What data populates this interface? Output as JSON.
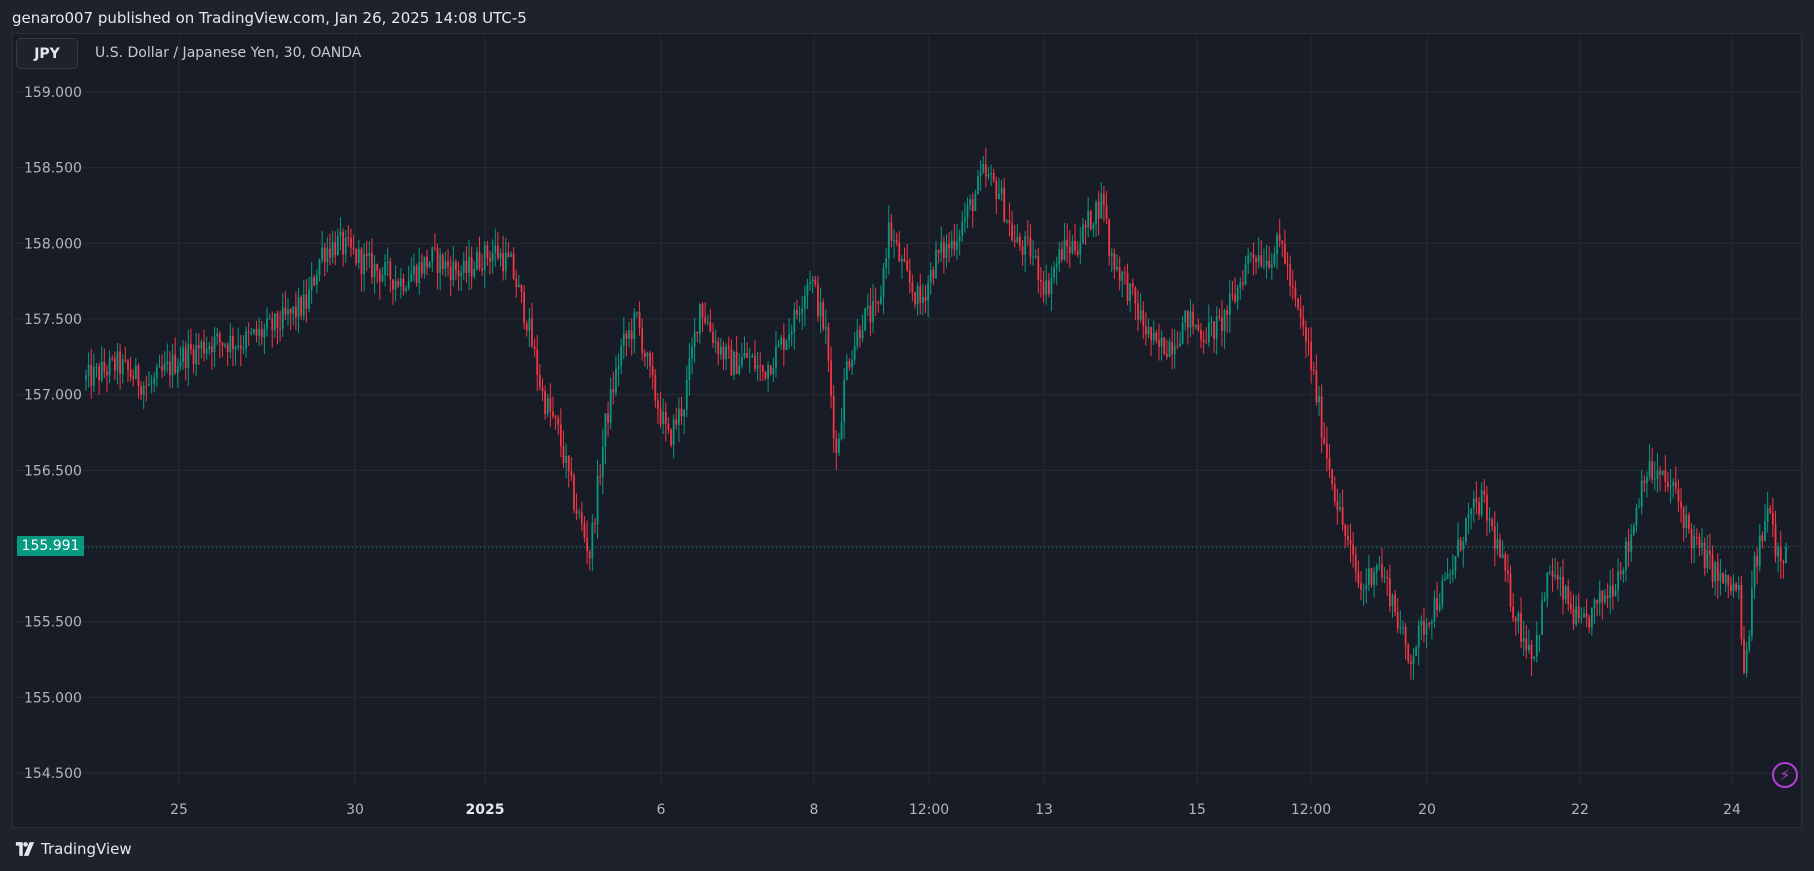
{
  "header": {
    "publish_line": "genaro007 published on TradingView.com, Jan 26, 2025 14:08 UTC-5"
  },
  "symbol": {
    "badge": "JPY",
    "description": "U.S. Dollar / Japanese Yen, 30, OANDA"
  },
  "last_price": "155.991",
  "brand": "TradingView",
  "colors": {
    "up": "#089981",
    "down": "#f23645",
    "background": "#181c27",
    "grid": "#262a35",
    "price_line": "#089981"
  },
  "chart_data": {
    "type": "candlestick",
    "title": "",
    "y_ticks": [
      "159.000",
      "158.500",
      "158.000",
      "157.500",
      "157.000",
      "156.500",
      "155.500",
      "155.000",
      "154.500"
    ],
    "ylim": [
      154.4,
      159.22
    ],
    "x_ticks": [
      {
        "label": "25",
        "bold": false
      },
      {
        "label": "30",
        "bold": false
      },
      {
        "label": "2025",
        "bold": true
      },
      {
        "label": "6",
        "bold": false
      },
      {
        "label": "8",
        "bold": false
      },
      {
        "label": "12:00",
        "bold": false
      },
      {
        "label": "13",
        "bold": false
      },
      {
        "label": "15",
        "bold": false
      },
      {
        "label": "12:00",
        "bold": false
      },
      {
        "label": "20",
        "bold": false
      },
      {
        "label": "22",
        "bold": false
      },
      {
        "label": "24",
        "bold": false
      }
    ],
    "last_close": 155.991,
    "price_path": [
      [
        0,
        157.1
      ],
      [
        12,
        157.2
      ],
      [
        24,
        157.05
      ],
      [
        36,
        157.25
      ],
      [
        48,
        157.35
      ],
      [
        60,
        157.35
      ],
      [
        72,
        157.45
      ],
      [
        84,
        157.6
      ],
      [
        90,
        157.95
      ],
      [
        96,
        158.0
      ],
      [
        108,
        157.85
      ],
      [
        120,
        157.75
      ],
      [
        132,
        157.9
      ],
      [
        144,
        157.8
      ],
      [
        150,
        157.9
      ],
      [
        156,
        157.95
      ],
      [
        162,
        157.85
      ],
      [
        168,
        157.5
      ],
      [
        174,
        157.0
      ],
      [
        180,
        156.75
      ],
      [
        186,
        156.3
      ],
      [
        192,
        155.95
      ],
      [
        198,
        156.8
      ],
      [
        204,
        157.3
      ],
      [
        210,
        157.5
      ],
      [
        216,
        157.05
      ],
      [
        222,
        156.7
      ],
      [
        228,
        156.95
      ],
      [
        234,
        157.6
      ],
      [
        240,
        157.35
      ],
      [
        246,
        157.2
      ],
      [
        252,
        157.25
      ],
      [
        258,
        157.15
      ],
      [
        264,
        157.3
      ],
      [
        270,
        157.5
      ],
      [
        276,
        157.8
      ],
      [
        282,
        157.4
      ],
      [
        286,
        156.6
      ],
      [
        290,
        157.2
      ],
      [
        296,
        157.5
      ],
      [
        302,
        157.55
      ],
      [
        306,
        158.1
      ],
      [
        312,
        157.8
      ],
      [
        318,
        157.6
      ],
      [
        324,
        157.9
      ],
      [
        330,
        158.0
      ],
      [
        336,
        158.2
      ],
      [
        342,
        158.45
      ],
      [
        348,
        158.35
      ],
      [
        354,
        158.0
      ],
      [
        360,
        157.95
      ],
      [
        366,
        157.7
      ],
      [
        372,
        157.95
      ],
      [
        378,
        158.0
      ],
      [
        384,
        158.2
      ],
      [
        388,
        158.3
      ],
      [
        390,
        157.95
      ],
      [
        396,
        157.75
      ],
      [
        402,
        157.5
      ],
      [
        408,
        157.3
      ],
      [
        414,
        157.35
      ],
      [
        420,
        157.5
      ],
      [
        426,
        157.4
      ],
      [
        432,
        157.45
      ],
      [
        438,
        157.65
      ],
      [
        444,
        157.95
      ],
      [
        450,
        157.9
      ],
      [
        456,
        158.0
      ],
      [
        460,
        157.65
      ],
      [
        466,
        157.3
      ],
      [
        472,
        156.7
      ],
      [
        478,
        156.2
      ],
      [
        486,
        155.7
      ],
      [
        492,
        155.9
      ],
      [
        498,
        155.65
      ],
      [
        504,
        155.25
      ],
      [
        512,
        155.55
      ],
      [
        520,
        155.8
      ],
      [
        526,
        156.15
      ],
      [
        532,
        156.3
      ],
      [
        538,
        156.0
      ],
      [
        544,
        155.6
      ],
      [
        548,
        155.4
      ],
      [
        552,
        155.3
      ],
      [
        558,
        155.85
      ],
      [
        564,
        155.65
      ],
      [
        570,
        155.45
      ],
      [
        576,
        155.6
      ],
      [
        582,
        155.75
      ],
      [
        588,
        156.0
      ],
      [
        594,
        156.5
      ],
      [
        600,
        156.45
      ],
      [
        606,
        156.35
      ],
      [
        612,
        156.05
      ],
      [
        618,
        155.9
      ],
      [
        624,
        155.75
      ],
      [
        630,
        155.7
      ],
      [
        632,
        155.1
      ],
      [
        636,
        155.85
      ],
      [
        642,
        156.3
      ],
      [
        644,
        156.0
      ],
      [
        648,
        155.95
      ]
    ]
  }
}
